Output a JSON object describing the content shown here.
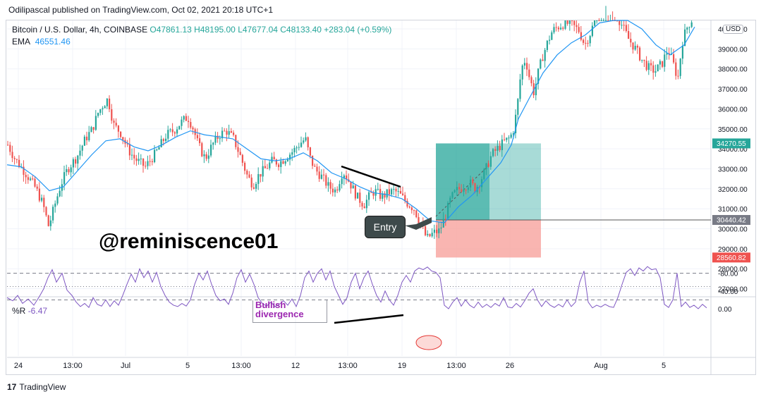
{
  "header": {
    "published": "Odilipascal published on TradingView.com, Oct 02, 2021 20:18 UTC+1"
  },
  "legend": {
    "symbol": "Bitcoin / U.S. Dollar, 4h, COINBASE",
    "ohlc": "O47861.13  H48195.00  L47677.04  C48133.40  +283.04 (+0.59%)",
    "ema_label": "EMA",
    "ema_value": "46551.46"
  },
  "currency": "USD",
  "watermark": "@reminiscence01",
  "entry_label": "Entry",
  "bullish_label": "Bullish divergence",
  "rsi_legend": {
    "label": "%R",
    "value": "-6.47"
  },
  "footer": {
    "brand": "TradingView"
  },
  "colors": {
    "up": "#26a69a",
    "down": "#ef5350",
    "ema": "#2196f3",
    "oscillator": "#7e57c2",
    "profit": "#26a69a",
    "loss": "#f7a39d"
  },
  "chart_data": {
    "type": "candlestick",
    "price_axis_labels": [
      "40000.00",
      "39000.00",
      "38000.00",
      "37000.00",
      "36000.00",
      "35000.00",
      "34000.00",
      "33000.00",
      "32000.00",
      "31000.00",
      "30000.00",
      "29000.00",
      "28000.00",
      "27000.00"
    ],
    "price_tick_values": [
      40000,
      39000,
      38000,
      37000,
      36000,
      35000,
      34000,
      33000,
      32000,
      31000,
      30000,
      29000,
      28000,
      27000
    ],
    "price_badges": [
      {
        "label": "34270.55",
        "value": 34270.55,
        "color": "#26a69a"
      },
      {
        "label": "30440.42",
        "value": 30440.42,
        "color": "#787b86"
      },
      {
        "label": "28560.82",
        "value": 28560.82,
        "color": "#ef5350"
      }
    ],
    "time_axis_labels": [
      "24",
      "13:00",
      "Jul",
      "5",
      "13:00",
      "12",
      "13:00",
      "19",
      "13:00",
      "26",
      "Aug",
      "5"
    ],
    "oscillator_axis_labels": [
      "0.00",
      "-40.00",
      "-80.00"
    ],
    "oscillator_tick_values": [
      0,
      -40,
      -80
    ],
    "price_path": [
      [
        0,
        34200
      ],
      [
        10,
        33500
      ],
      [
        25,
        32800
      ],
      [
        40,
        32000
      ],
      [
        50,
        31200
      ],
      [
        58,
        30100
      ],
      [
        65,
        31000
      ],
      [
        75,
        32200
      ],
      [
        85,
        33000
      ],
      [
        98,
        33600
      ],
      [
        110,
        34500
      ],
      [
        120,
        35000
      ],
      [
        128,
        35800
      ],
      [
        135,
        36200
      ],
      [
        142,
        36500
      ],
      [
        150,
        35200
      ],
      [
        160,
        34800
      ],
      [
        170,
        34000
      ],
      [
        180,
        33500
      ],
      [
        195,
        33100
      ],
      [
        210,
        33800
      ],
      [
        225,
        34700
      ],
      [
        235,
        34900
      ],
      [
        245,
        35300
      ],
      [
        255,
        35600
      ],
      [
        262,
        35100
      ],
      [
        270,
        34200
      ],
      [
        280,
        33500
      ],
      [
        290,
        34200
      ],
      [
        300,
        34700
      ],
      [
        310,
        34900
      ],
      [
        320,
        34500
      ],
      [
        330,
        33600
      ],
      [
        340,
        32600
      ],
      [
        348,
        32200
      ],
      [
        356,
        32700
      ],
      [
        365,
        33000
      ],
      [
        375,
        33400
      ],
      [
        385,
        33300
      ],
      [
        395,
        33600
      ],
      [
        405,
        33900
      ],
      [
        415,
        34300
      ],
      [
        422,
        34500
      ],
      [
        428,
        33600
      ],
      [
        435,
        33000
      ],
      [
        445,
        32600
      ],
      [
        455,
        32100
      ],
      [
        465,
        31900
      ],
      [
        475,
        32900
      ],
      [
        485,
        32300
      ],
      [
        495,
        31600
      ],
      [
        505,
        31200
      ],
      [
        512,
        31600
      ],
      [
        520,
        31900
      ],
      [
        530,
        31600
      ],
      [
        540,
        31800
      ],
      [
        548,
        31900
      ],
      [
        556,
        31700
      ],
      [
        566,
        31300
      ],
      [
        576,
        31000
      ],
      [
        586,
        30200
      ],
      [
        594,
        29500
      ],
      [
        604,
        29800
      ],
      [
        612,
        29900
      ],
      [
        620,
        30600
      ],
      [
        628,
        31500
      ],
      [
        636,
        31900
      ],
      [
        645,
        32100
      ],
      [
        655,
        32300
      ],
      [
        663,
        32000
      ],
      [
        670,
        32400
      ],
      [
        678,
        33000
      ],
      [
        686,
        33700
      ],
      [
        694,
        34000
      ],
      [
        702,
        34300
      ],
      [
        710,
        34500
      ],
      [
        716,
        34800
      ],
      [
        722,
        36000
      ],
      [
        728,
        38000
      ],
      [
        734,
        38500
      ],
      [
        740,
        37500
      ],
      [
        746,
        36800
      ],
      [
        752,
        37800
      ],
      [
        758,
        38600
      ],
      [
        765,
        39300
      ],
      [
        772,
        39900
      ],
      [
        780,
        40100
      ],
      [
        790,
        40300
      ],
      [
        800,
        40200
      ],
      [
        810,
        39900
      ],
      [
        818,
        39200
      ],
      [
        826,
        39800
      ],
      [
        834,
        40600
      ],
      [
        842,
        41000
      ],
      [
        852,
        41200
      ],
      [
        862,
        40800
      ],
      [
        872,
        40100
      ],
      [
        880,
        39500
      ],
      [
        890,
        39000
      ],
      [
        900,
        38400
      ],
      [
        910,
        38000
      ],
      [
        918,
        37900
      ],
      [
        928,
        38300
      ],
      [
        936,
        39000
      ],
      [
        944,
        38200
      ],
      [
        950,
        37500
      ],
      [
        956,
        39300
      ],
      [
        962,
        40000
      ],
      [
        968,
        40400
      ],
      [
        974,
        40600
      ]
    ],
    "ema_path": [
      [
        0,
        33200
      ],
      [
        20,
        33100
      ],
      [
        40,
        32600
      ],
      [
        60,
        31900
      ],
      [
        80,
        32100
      ],
      [
        100,
        32900
      ],
      [
        120,
        33700
      ],
      [
        140,
        34400
      ],
      [
        160,
        34500
      ],
      [
        180,
        34100
      ],
      [
        200,
        33900
      ],
      [
        220,
        34200
      ],
      [
        240,
        34600
      ],
      [
        260,
        34900
      ],
      [
        280,
        34700
      ],
      [
        300,
        34600
      ],
      [
        320,
        34500
      ],
      [
        340,
        34000
      ],
      [
        360,
        33500
      ],
      [
        380,
        33400
      ],
      [
        400,
        33500
      ],
      [
        420,
        33800
      ],
      [
        440,
        33400
      ],
      [
        460,
        32800
      ],
      [
        480,
        32500
      ],
      [
        500,
        32100
      ],
      [
        520,
        31800
      ],
      [
        540,
        31700
      ],
      [
        560,
        31500
      ],
      [
        580,
        31000
      ],
      [
        600,
        30400
      ],
      [
        620,
        30300
      ],
      [
        640,
        31100
      ],
      [
        660,
        31700
      ],
      [
        680,
        32500
      ],
      [
        700,
        33300
      ],
      [
        715,
        34200
      ],
      [
        725,
        35500
      ],
      [
        740,
        36500
      ],
      [
        760,
        37800
      ],
      [
        780,
        38700
      ],
      [
        800,
        39300
      ],
      [
        820,
        39700
      ],
      [
        840,
        40300
      ],
      [
        860,
        40800
      ],
      [
        880,
        40600
      ],
      [
        900,
        40000
      ],
      [
        920,
        39200
      ],
      [
        940,
        38700
      ],
      [
        960,
        39200
      ],
      [
        975,
        40100
      ]
    ],
    "oscillator_path": [
      [
        0,
        -25
      ],
      [
        8,
        -18
      ],
      [
        15,
        -30
      ],
      [
        22,
        -12
      ],
      [
        30,
        -22
      ],
      [
        38,
        -8
      ],
      [
        46,
        -28
      ],
      [
        52,
        -45
      ],
      [
        58,
        -70
      ],
      [
        64,
        -88
      ],
      [
        70,
        -60
      ],
      [
        78,
        -80
      ],
      [
        85,
        -42
      ],
      [
        92,
        -30
      ],
      [
        98,
        -15
      ],
      [
        104,
        -5
      ],
      [
        110,
        -12
      ],
      [
        116,
        -3
      ],
      [
        122,
        -25
      ],
      [
        128,
        -10
      ],
      [
        134,
        -6
      ],
      [
        140,
        -20
      ],
      [
        146,
        -5
      ],
      [
        152,
        -18
      ],
      [
        158,
        -8
      ],
      [
        164,
        -30
      ],
      [
        170,
        -55
      ],
      [
        176,
        -78
      ],
      [
        182,
        -60
      ],
      [
        188,
        -90
      ],
      [
        194,
        -70
      ],
      [
        200,
        -85
      ],
      [
        206,
        -60
      ],
      [
        212,
        -82
      ],
      [
        218,
        -50
      ],
      [
        224,
        -30
      ],
      [
        230,
        -15
      ],
      [
        236,
        -8
      ],
      [
        242,
        -5
      ],
      [
        248,
        -12
      ],
      [
        254,
        -6
      ],
      [
        260,
        -20
      ],
      [
        266,
        -55
      ],
      [
        272,
        -80
      ],
      [
        278,
        -65
      ],
      [
        284,
        -85
      ],
      [
        290,
        -55
      ],
      [
        296,
        -30
      ],
      [
        302,
        -18
      ],
      [
        308,
        -22
      ],
      [
        314,
        -10
      ],
      [
        320,
        -35
      ],
      [
        326,
        -70
      ],
      [
        332,
        -88
      ],
      [
        338,
        -60
      ],
      [
        344,
        -78
      ],
      [
        350,
        -55
      ],
      [
        356,
        -25
      ],
      [
        362,
        -12
      ],
      [
        368,
        -6
      ],
      [
        374,
        -15
      ],
      [
        380,
        -5
      ],
      [
        386,
        -10
      ],
      [
        392,
        -18
      ],
      [
        398,
        -8
      ],
      [
        404,
        -22
      ],
      [
        410,
        -5
      ],
      [
        416,
        -30
      ],
      [
        422,
        -70
      ],
      [
        428,
        -85
      ],
      [
        434,
        -60
      ],
      [
        440,
        -80
      ],
      [
        446,
        -90
      ],
      [
        452,
        -65
      ],
      [
        458,
        -85
      ],
      [
        464,
        -50
      ],
      [
        470,
        -30
      ],
      [
        476,
        -10
      ],
      [
        482,
        -25
      ],
      [
        488,
        -60
      ],
      [
        494,
        -80
      ],
      [
        500,
        -45
      ],
      [
        506,
        -70
      ],
      [
        512,
        -85
      ],
      [
        518,
        -55
      ],
      [
        524,
        -30
      ],
      [
        530,
        -15
      ],
      [
        536,
        -40
      ],
      [
        542,
        -20
      ],
      [
        548,
        -8
      ],
      [
        554,
        -30
      ],
      [
        560,
        -60
      ],
      [
        566,
        -75
      ],
      [
        572,
        -60
      ],
      [
        578,
        -85
      ],
      [
        584,
        -92
      ],
      [
        590,
        -88
      ],
      [
        596,
        -94
      ],
      [
        602,
        -85
      ],
      [
        608,
        -82
      ],
      [
        614,
        -70
      ],
      [
        620,
        -8
      ],
      [
        626,
        0
      ],
      [
        632,
        -15
      ],
      [
        638,
        -25
      ],
      [
        644,
        -6
      ],
      [
        650,
        -20
      ],
      [
        656,
        -8
      ],
      [
        662,
        -2
      ],
      [
        668,
        -15
      ],
      [
        674,
        -3
      ],
      [
        680,
        -10
      ],
      [
        686,
        -3
      ],
      [
        692,
        -12
      ],
      [
        698,
        -6
      ],
      [
        704,
        -25
      ],
      [
        710,
        -4
      ],
      [
        716,
        -2
      ],
      [
        722,
        -12
      ],
      [
        728,
        -4
      ],
      [
        734,
        -18
      ],
      [
        740,
        -35
      ],
      [
        746,
        -45
      ],
      [
        752,
        -20
      ],
      [
        758,
        -5
      ],
      [
        764,
        -18
      ],
      [
        770,
        -8
      ],
      [
        776,
        -3
      ],
      [
        782,
        -10
      ],
      [
        788,
        -4
      ],
      [
        794,
        -20
      ],
      [
        800,
        -5
      ],
      [
        806,
        -15
      ],
      [
        812,
        -60
      ],
      [
        818,
        -85
      ],
      [
        824,
        -15
      ],
      [
        830,
        -2
      ],
      [
        836,
        -8
      ],
      [
        842,
        -4
      ],
      [
        848,
        -10
      ],
      [
        854,
        -5
      ],
      [
        860,
        -3
      ],
      [
        866,
        -25
      ],
      [
        872,
        -55
      ],
      [
        878,
        -82
      ],
      [
        884,
        -90
      ],
      [
        890,
        -75
      ],
      [
        896,
        -92
      ],
      [
        902,
        -85
      ],
      [
        908,
        -95
      ],
      [
        914,
        -88
      ],
      [
        920,
        -90
      ],
      [
        926,
        -70
      ],
      [
        932,
        -10
      ],
      [
        938,
        -3
      ],
      [
        944,
        -20
      ],
      [
        950,
        -80
      ],
      [
        956,
        -5
      ],
      [
        962,
        -15
      ],
      [
        968,
        -3
      ],
      [
        974,
        -8
      ],
      [
        980,
        0
      ],
      [
        986,
        -10
      ],
      [
        992,
        -2
      ]
    ],
    "position_tool": {
      "entry": 30440.42,
      "target": 34270.55,
      "stop": 28560.82
    },
    "legend_position": "top-left"
  }
}
